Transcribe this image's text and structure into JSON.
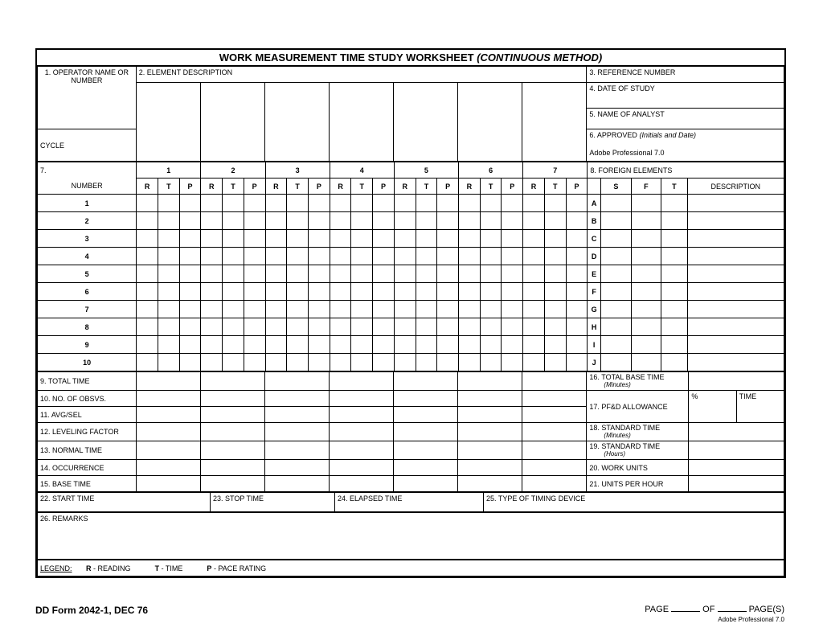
{
  "title_main": "WORK MEASUREMENT TIME STUDY WORKSHEET",
  "title_suffix": "(CONTINUOUS METHOD)",
  "f1": "1.  OPERATOR NAME OR NUMBER",
  "f1b": "CYCLE",
  "f2": "2.  ELEMENT DESCRIPTION",
  "f3": "3.  REFERENCE NUMBER",
  "f4": "4.  DATE OF STUDY",
  "f5": "5.  NAME OF ANALYST",
  "f6": "6.  APPROVED",
  "f6_hint": "(Initials and Date)",
  "f6_val": "Adobe Professional 7.0",
  "f7": "7.",
  "f7b": "NUMBER",
  "cols_top": [
    "1",
    "2",
    "3",
    "4",
    "5",
    "6",
    "7"
  ],
  "rtp": [
    "R",
    "T",
    "P"
  ],
  "f8": "8.  FOREIGN ELEMENTS",
  "f8_cols": [
    "S",
    "F",
    "T",
    "DESCRIPTION"
  ],
  "rows": [
    "1",
    "2",
    "3",
    "4",
    "5",
    "6",
    "7",
    "8",
    "9",
    "10"
  ],
  "rows_letters": [
    "A",
    "B",
    "C",
    "D",
    "E",
    "F",
    "G",
    "H",
    "I",
    "J"
  ],
  "bottom_left": [
    "9. TOTAL TIME",
    "10. NO. OF OBSVS.",
    "11. AVG/SEL",
    "12. LEVELING FACTOR",
    "13. NORMAL TIME",
    "14. OCCURRENCE",
    "15. BASE TIME"
  ],
  "bottom_right": [
    "16. TOTAL BASE TIME",
    "17. PF&D ALLOWANCE",
    "18. STANDARD TIME",
    "19. STANDARD TIME",
    "20. WORK UNITS",
    "21. UNITS PER HOUR"
  ],
  "br16_hint": "(Minutes)",
  "br17_pct": "%",
  "br17_time": "TIME",
  "br18_hint": "(Minutes)",
  "br19_hint": "(Hours)",
  "f22": "22. START TIME",
  "f23": "23. STOP TIME",
  "f24": "24. ELAPSED TIME",
  "f25": "25. TYPE OF TIMING DEVICE",
  "f26": "26. REMARKS",
  "legend": "LEGEND:",
  "legend_r": "R",
  "legend_r_txt": " - READING",
  "legend_t": "T",
  "legend_t_txt": " - TIME",
  "legend_p": "P",
  "legend_p_txt": " - PACE RATING",
  "form_id": "DD Form 2042-1, DEC 76",
  "page_lbl": "PAGE",
  "of_lbl": "OF",
  "pages_lbl": "PAGE(S)",
  "adobe_footer": "Adobe Professional 7.0"
}
